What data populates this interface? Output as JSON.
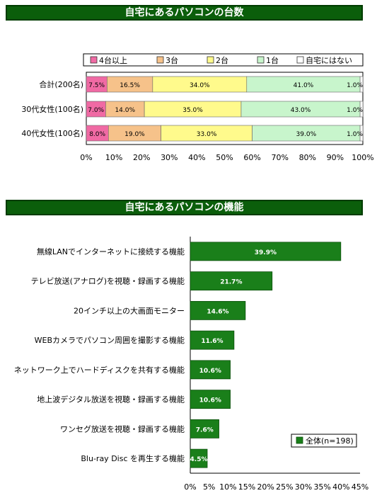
{
  "chart_data": [
    {
      "type": "bar",
      "orientation": "horizontal",
      "stacked": true,
      "title": "自宅にあるパソコンの台数",
      "categories": [
        "合計(200名)",
        "30代女性(100名)",
        "40代女性(100名)"
      ],
      "series": [
        {
          "name": "4台以上",
          "color": "#f06aa4",
          "values": [
            7.5,
            7.0,
            8.0
          ],
          "labels": [
            "7.5%",
            "7.0%",
            "8.0%"
          ]
        },
        {
          "name": "3台",
          "color": "#f6c28a",
          "values": [
            16.5,
            14.0,
            19.0
          ],
          "labels": [
            "16.5%",
            "14.0%",
            "19.0%"
          ]
        },
        {
          "name": "2台",
          "color": "#fffa8c",
          "values": [
            34.0,
            35.0,
            33.0
          ],
          "labels": [
            "34.0%",
            "35.0%",
            "33.0%"
          ]
        },
        {
          "name": "1台",
          "color": "#c8f5cc",
          "values": [
            41.0,
            43.0,
            39.0
          ],
          "labels": [
            "41.0%",
            "43.0%",
            "39.0%"
          ]
        },
        {
          "name": "自宅にはない",
          "color": "#ffffff",
          "values": [
            1.0,
            1.0,
            1.0
          ],
          "labels": [
            "1.0%",
            "1.0%",
            "1.0%"
          ]
        }
      ],
      "xlim": [
        0,
        100
      ],
      "xticks": [
        "0%",
        "10%",
        "20%",
        "30%",
        "40%",
        "50%",
        "60%",
        "70%",
        "80%",
        "90%",
        "100%"
      ],
      "legend_position": "top"
    },
    {
      "type": "bar",
      "orientation": "horizontal",
      "title": "自宅にあるパソコンの機能",
      "categories": [
        "無線LANでインターネットに接続する機能",
        "テレビ放送(アナログ)を視聴・録画する機能",
        "20インチ以上の大画面モニター",
        "WEBカメラでパソコン周囲を撮影する機能",
        "ネットワーク上でハードディスクを共有する機能",
        "地上波デジタル放送を視聴・録画する機能",
        "ワンセグ放送を視聴・録画する機能",
        "Blu-ray Disc を再生する機能"
      ],
      "series": [
        {
          "name": "全体(n=198)",
          "color": "#1a7f1a",
          "values": [
            39.9,
            21.7,
            14.6,
            11.6,
            10.6,
            10.6,
            7.6,
            4.5
          ],
          "labels": [
            "39.9%",
            "21.7%",
            "14.6%",
            "11.6%",
            "10.6%",
            "10.6%",
            "7.6%",
            "4.5%"
          ]
        }
      ],
      "xlim": [
        0,
        45
      ],
      "xticks": [
        "0%",
        "5%",
        "10%",
        "15%",
        "20%",
        "25%",
        "30%",
        "35%",
        "40%",
        "45%"
      ],
      "legend_position": "bottom-right"
    }
  ]
}
